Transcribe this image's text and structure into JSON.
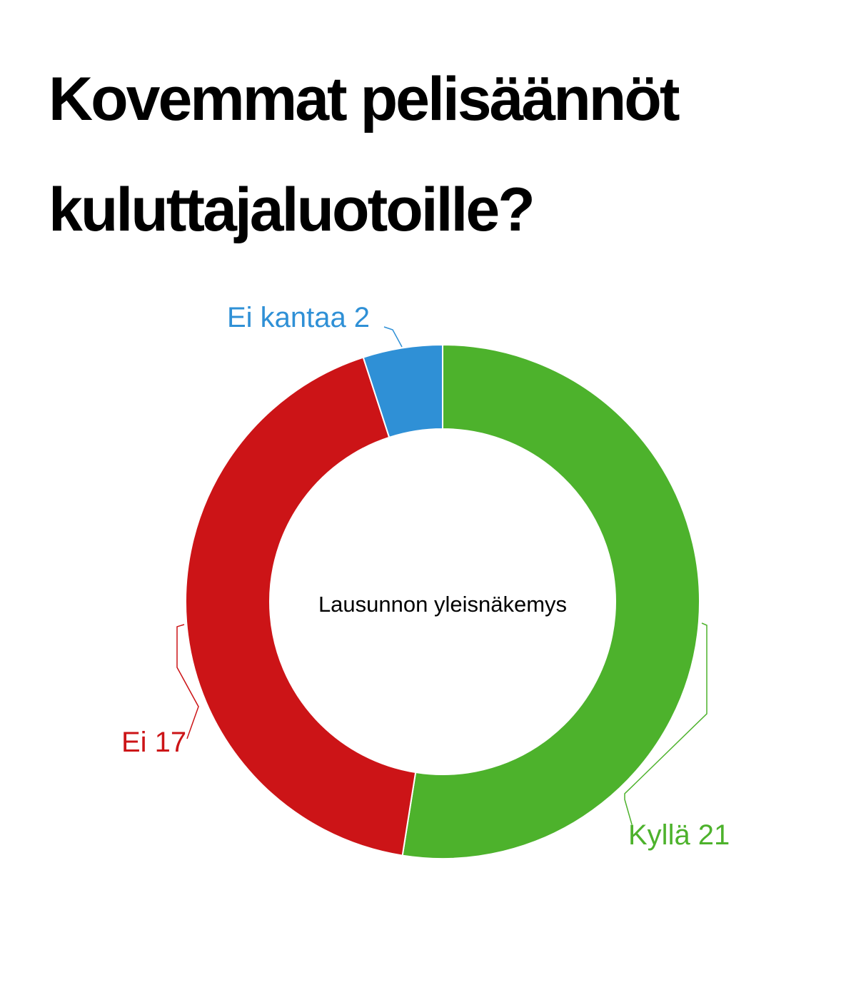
{
  "chart_data": {
    "type": "donut",
    "title": "Kovemmat pelisäännöt kuluttajaluotoille?",
    "center_label": "Lausunnon yleisnäkemys",
    "categories": [
      "Kyllä",
      "Ei",
      "Ei kantaa"
    ],
    "values": [
      21,
      17,
      2
    ],
    "colors": [
      "#4db22c",
      "#cc1417",
      "#2f90d6"
    ]
  }
}
